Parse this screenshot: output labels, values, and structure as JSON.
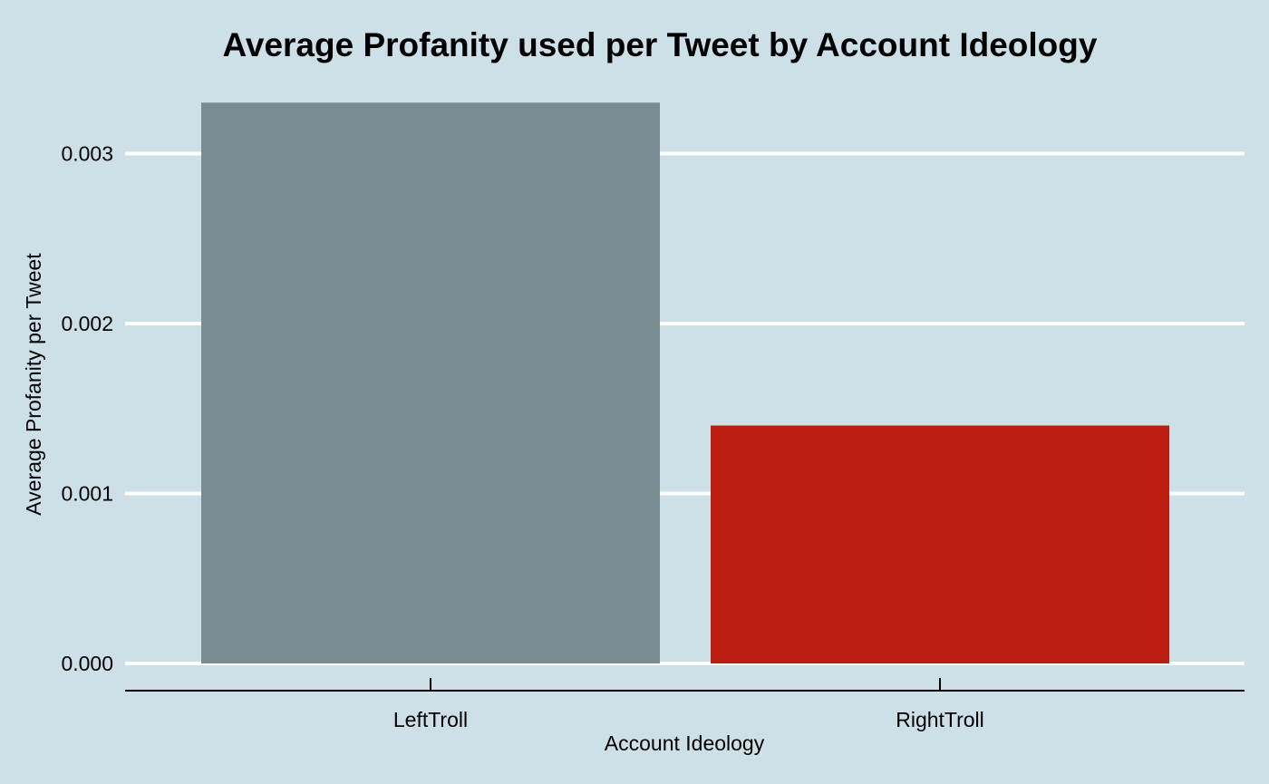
{
  "chart_data": {
    "type": "bar",
    "title": "Average Profanity used per Tweet by Account Ideology",
    "xlabel": "Account Ideology",
    "ylabel": "Average Profanity per Tweet",
    "categories": [
      "LeftTroll",
      "RightTroll"
    ],
    "values": [
      0.0033,
      0.0014
    ],
    "bar_colors": [
      "#788c92",
      "#bb1e11"
    ],
    "y_ticks": [
      0,
      0.001,
      0.002,
      0.003
    ],
    "y_tick_labels": [
      "0.000",
      "0.001",
      "0.002",
      "0.003"
    ],
    "ylim": [
      0,
      0.0033
    ],
    "grid": true,
    "legend": "none"
  },
  "colors": {
    "background": "#cde0e7",
    "grid": "#ffffff",
    "axis": "#000000"
  }
}
